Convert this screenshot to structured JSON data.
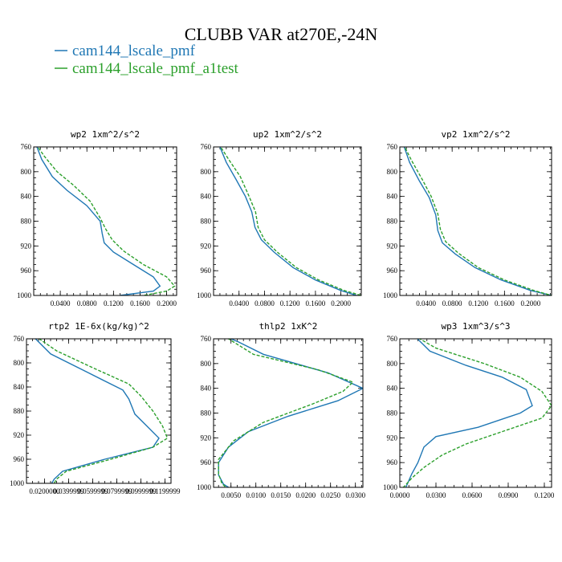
{
  "figure": {
    "title": "CLUBB VAR at270E,-24N"
  },
  "legend": [
    {
      "name": "cam144_lscale_pmf",
      "color": "#1f77b4"
    },
    {
      "name": "cam144_lscale_pmf_a1test",
      "color": "#2ca02c"
    }
  ],
  "chart_data": [
    {
      "type": "line",
      "title": "wp2  1xm^2/s^2",
      "xlim": [
        0.0,
        0.215
      ],
      "ylim": [
        760,
        1000
      ],
      "xticks": [
        0.04,
        0.08,
        0.12,
        0.16,
        0.2
      ],
      "xtick_labels": [
        "0.0400",
        "0.0800",
        "0.1200",
        "0.1600",
        "0.2000"
      ],
      "yticks": [
        760,
        800,
        840,
        880,
        920,
        960,
        1000
      ],
      "ytick_labels": [
        "760",
        "800",
        "840",
        "880",
        "920",
        "960",
        "1000"
      ],
      "series": [
        {
          "name": "cam144_lscale_pmf",
          "x": [
            0.003,
            0.012,
            0.028,
            0.05,
            0.08,
            0.1,
            0.103,
            0.106,
            0.12,
            0.15,
            0.18,
            0.19,
            0.18,
            0.13
          ],
          "y": [
            755,
            780,
            808,
            830,
            855,
            880,
            900,
            915,
            930,
            950,
            970,
            985,
            993,
            1000
          ]
        },
        {
          "name": "cam144_lscale_pmf_a1test",
          "x": [
            0.003,
            0.016,
            0.035,
            0.06,
            0.085,
            0.1,
            0.108,
            0.118,
            0.135,
            0.165,
            0.2,
            0.212,
            0.2,
            0.165
          ],
          "y": [
            755,
            775,
            800,
            822,
            848,
            875,
            892,
            910,
            928,
            950,
            970,
            985,
            993,
            1000
          ]
        }
      ]
    },
    {
      "type": "line",
      "title": "up2  1xm^2/s^2",
      "xlim": [
        0.0,
        0.232
      ],
      "ylim": [
        760,
        1000
      ],
      "xticks": [
        0.04,
        0.08,
        0.12,
        0.16,
        0.2
      ],
      "xtick_labels": [
        "0.0400",
        "0.0800",
        "0.1200",
        "0.1600",
        "0.2000"
      ],
      "yticks": [
        760,
        800,
        840,
        880,
        920,
        960,
        1000
      ],
      "ytick_labels": [
        "760",
        "800",
        "840",
        "880",
        "920",
        "960",
        "1000"
      ],
      "series": [
        {
          "name": "cam144_lscale_pmf",
          "x": [
            0.008,
            0.02,
            0.035,
            0.05,
            0.06,
            0.065,
            0.075,
            0.095,
            0.125,
            0.16,
            0.2,
            0.225
          ],
          "y": [
            755,
            785,
            812,
            840,
            865,
            890,
            910,
            930,
            955,
            975,
            992,
            1000
          ]
        },
        {
          "name": "cam144_lscale_pmf_a1test",
          "x": [
            0.008,
            0.025,
            0.042,
            0.055,
            0.066,
            0.07,
            0.08,
            0.1,
            0.13,
            0.165,
            0.205,
            0.232
          ],
          "y": [
            755,
            782,
            808,
            838,
            865,
            890,
            910,
            930,
            955,
            975,
            992,
            1000
          ]
        }
      ]
    },
    {
      "type": "line",
      "title": "vp2  1xm^2/s^2",
      "xlim": [
        0.0,
        0.232
      ],
      "ylim": [
        760,
        1000
      ],
      "xticks": [
        0.04,
        0.08,
        0.12,
        0.16,
        0.2
      ],
      "xtick_labels": [
        "0.0400",
        "0.0800",
        "0.1200",
        "0.1600",
        "0.2000"
      ],
      "yticks": [
        760,
        800,
        840,
        880,
        920,
        960,
        1000
      ],
      "ytick_labels": [
        "760",
        "800",
        "840",
        "880",
        "920",
        "960",
        "1000"
      ],
      "series": [
        {
          "name": "cam144_lscale_pmf",
          "x": [
            0.005,
            0.015,
            0.03,
            0.045,
            0.055,
            0.058,
            0.065,
            0.085,
            0.115,
            0.155,
            0.2,
            0.232
          ],
          "y": [
            755,
            785,
            815,
            842,
            870,
            895,
            915,
            933,
            955,
            975,
            992,
            1000
          ]
        },
        {
          "name": "cam144_lscale_pmf_a1test",
          "x": [
            0.005,
            0.018,
            0.034,
            0.048,
            0.058,
            0.062,
            0.07,
            0.09,
            0.12,
            0.16,
            0.205,
            0.232
          ],
          "y": [
            755,
            782,
            812,
            840,
            868,
            893,
            913,
            932,
            955,
            975,
            992,
            1000
          ]
        }
      ]
    },
    {
      "type": "line",
      "title": "rtp2  1E-6x(kg/kg)^2",
      "xlim": [
        0.005,
        0.125
      ],
      "ylim": [
        760,
        1000
      ],
      "xticks": [
        0.02,
        0.04,
        0.06,
        0.08,
        0.1,
        0.12
      ],
      "xtick_labels": [
        "0.0200000",
        "0.0399999",
        "0.0599999",
        "0.0799999",
        "0.0999999",
        "0.1199999"
      ],
      "yticks": [
        760,
        800,
        840,
        880,
        920,
        960,
        1000
      ],
      "ytick_labels": [
        "760",
        "800",
        "840",
        "880",
        "920",
        "960",
        "1000"
      ],
      "series": [
        {
          "name": "cam144_lscale_pmf",
          "x": [
            0.01,
            0.025,
            0.055,
            0.085,
            0.09,
            0.095,
            0.105,
            0.115,
            0.11,
            0.07,
            0.035,
            0.028,
            0.026
          ],
          "y": [
            755,
            785,
            815,
            845,
            860,
            885,
            905,
            925,
            940,
            960,
            980,
            993,
            1000
          ]
        },
        {
          "name": "cam144_lscale_pmf_a1test",
          "x": [
            0.012,
            0.03,
            0.06,
            0.09,
            0.1,
            0.11,
            0.118,
            0.122,
            0.11,
            0.075,
            0.038,
            0.03,
            0.028
          ],
          "y": [
            755,
            780,
            808,
            835,
            855,
            880,
            905,
            925,
            940,
            960,
            980,
            993,
            1000
          ]
        }
      ]
    },
    {
      "type": "line",
      "title": "thlp2  1xK^2",
      "xlim": [
        0.0015,
        0.0315
      ],
      "ylim": [
        760,
        1000
      ],
      "xticks": [
        0.005,
        0.01,
        0.015,
        0.02,
        0.025,
        0.03
      ],
      "xtick_labels": [
        "0.0050",
        "0.0100",
        "0.0150",
        "0.0200",
        "0.0250",
        "0.0300"
      ],
      "yticks": [
        760,
        800,
        840,
        880,
        920,
        960,
        1000
      ],
      "ytick_labels": [
        "760",
        "800",
        "840",
        "880",
        "920",
        "960",
        "1000"
      ],
      "series": [
        {
          "name": "cam144_lscale_pmf",
          "x": [
            0.0035,
            0.0065,
            0.0115,
            0.0245,
            0.0315,
            0.0265,
            0.0165,
            0.0085,
            0.0045,
            0.0025,
            0.0025,
            0.0035,
            0.0045
          ],
          "y": [
            755,
            765,
            785,
            815,
            840,
            860,
            885,
            910,
            935,
            960,
            980,
            995,
            1000
          ]
        },
        {
          "name": "cam144_lscale_pmf_a1test",
          "x": [
            0.0035,
            0.0055,
            0.0095,
            0.0225,
            0.0295,
            0.0275,
            0.0215,
            0.0115,
            0.0055,
            0.0025,
            0.0025,
            0.0032,
            0.004
          ],
          "y": [
            755,
            765,
            785,
            810,
            830,
            845,
            865,
            895,
            925,
            955,
            978,
            994,
            1000
          ]
        }
      ]
    },
    {
      "type": "line",
      "title": "wp3  1xm^3/s^3",
      "xlim": [
        0.0,
        0.126
      ],
      "ylim": [
        760,
        1000
      ],
      "xticks": [
        0.0,
        0.03,
        0.06,
        0.09,
        0.12
      ],
      "xtick_labels": [
        "0.0000",
        "0.0300",
        "0.0600",
        "0.0900",
        "0.1200"
      ],
      "yticks": [
        760,
        800,
        840,
        880,
        920,
        960,
        1000
      ],
      "ytick_labels": [
        "760",
        "800",
        "840",
        "880",
        "920",
        "960",
        "1000"
      ],
      "series": [
        {
          "name": "cam144_lscale_pmf",
          "x": [
            0.012,
            0.025,
            0.055,
            0.085,
            0.105,
            0.11,
            0.1,
            0.065,
            0.03,
            0.02,
            0.015,
            0.01,
            0.005
          ],
          "y": [
            755,
            780,
            803,
            822,
            842,
            868,
            880,
            903,
            918,
            935,
            960,
            978,
            1000
          ]
        },
        {
          "name": "cam144_lscale_pmf_a1test",
          "x": [
            0.012,
            0.03,
            0.07,
            0.1,
            0.118,
            0.126,
            0.118,
            0.085,
            0.055,
            0.035,
            0.02,
            0.01,
            0.003
          ],
          "y": [
            755,
            775,
            800,
            822,
            845,
            868,
            888,
            910,
            930,
            948,
            968,
            985,
            1000
          ]
        }
      ]
    }
  ]
}
